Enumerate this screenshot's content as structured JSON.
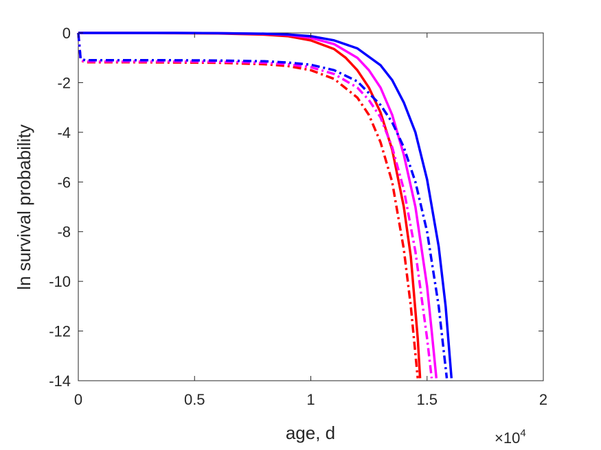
{
  "chart_data": {
    "type": "line",
    "xlabel": "age, d",
    "ylabel": "ln survival probability",
    "xlim": [
      0,
      20000
    ],
    "ylim": [
      -14,
      0
    ],
    "x_ticks": [
      0,
      5000,
      10000,
      15000,
      20000
    ],
    "x_tick_labels": [
      "0",
      "0.5",
      "1",
      "1.5",
      "2"
    ],
    "x_exponent_prefix": "×10",
    "x_exponent_power": "4",
    "y_ticks": [
      0,
      -2,
      -4,
      -6,
      -8,
      -10,
      -12,
      -14
    ],
    "y_tick_labels": [
      "0",
      "-2",
      "-4",
      "-6",
      "-8",
      "-10",
      "-12",
      "-14"
    ],
    "grid": false,
    "series": [
      {
        "color": "#ff0000",
        "style": "solid",
        "x": [
          0,
          2000,
          4000,
          6000,
          8000,
          9000,
          10000,
          11000,
          11500,
          12000,
          12500,
          13000,
          13500,
          14000,
          14300,
          14600,
          14700
        ],
        "y": [
          0,
          0,
          -0.01,
          -0.02,
          -0.07,
          -0.13,
          -0.3,
          -0.65,
          -1.0,
          -1.5,
          -2.2,
          -3.2,
          -4.7,
          -7.0,
          -9.0,
          -12.3,
          -13.9
        ]
      },
      {
        "color": "#ff00ff",
        "style": "solid",
        "x": [
          0,
          2000,
          4000,
          6000,
          8000,
          9000,
          10000,
          11000,
          12000,
          12500,
          13000,
          13500,
          14000,
          14500,
          15000,
          15200,
          15400
        ],
        "y": [
          0,
          0,
          0,
          -0.01,
          -0.04,
          -0.08,
          -0.2,
          -0.45,
          -1.0,
          -1.5,
          -2.2,
          -3.3,
          -4.9,
          -7.0,
          -10.2,
          -12.0,
          -13.9
        ]
      },
      {
        "color": "#0000ff",
        "style": "solid",
        "x": [
          0,
          2000,
          4000,
          6000,
          8000,
          9000,
          10000,
          11000,
          12000,
          13000,
          13500,
          14000,
          14500,
          15000,
          15500,
          15800,
          16050
        ],
        "y": [
          0,
          0,
          0,
          -0.01,
          -0.03,
          -0.06,
          -0.13,
          -0.3,
          -0.62,
          -1.3,
          -1.9,
          -2.8,
          -4.0,
          -5.9,
          -8.6,
          -11.0,
          -13.9
        ]
      },
      {
        "color": "#ff0000",
        "style": "dashdot",
        "x": [
          0,
          100,
          300,
          2000,
          4000,
          6000,
          8000,
          9000,
          10000,
          11000,
          12000,
          12500,
          13000,
          13500,
          14000,
          14300,
          14600
        ],
        "y": [
          0,
          -1.1,
          -1.18,
          -1.18,
          -1.19,
          -1.2,
          -1.26,
          -1.33,
          -1.5,
          -1.85,
          -2.6,
          -3.3,
          -4.4,
          -6.0,
          -8.7,
          -11.0,
          -13.9
        ]
      },
      {
        "color": "#ff00ff",
        "style": "dashdot",
        "x": [
          0,
          100,
          300,
          2000,
          4000,
          6000,
          8000,
          9000,
          10000,
          11000,
          12000,
          12500,
          13000,
          13500,
          14000,
          14500,
          15000,
          15200
        ],
        "y": [
          0,
          -1.1,
          -1.15,
          -1.15,
          -1.15,
          -1.16,
          -1.2,
          -1.26,
          -1.38,
          -1.65,
          -2.2,
          -2.7,
          -3.4,
          -4.6,
          -6.3,
          -8.8,
          -12.3,
          -13.9
        ]
      },
      {
        "color": "#0000ff",
        "style": "dashdot",
        "x": [
          0,
          100,
          300,
          2000,
          4000,
          6000,
          8000,
          9000,
          10000,
          11000,
          12000,
          13000,
          13500,
          14000,
          14500,
          15000,
          15500,
          15850
        ],
        "y": [
          0,
          -1.05,
          -1.1,
          -1.1,
          -1.1,
          -1.11,
          -1.14,
          -1.19,
          -1.28,
          -1.5,
          -1.95,
          -2.9,
          -3.6,
          -4.6,
          -6.0,
          -8.0,
          -11.0,
          -13.9
        ]
      }
    ]
  }
}
